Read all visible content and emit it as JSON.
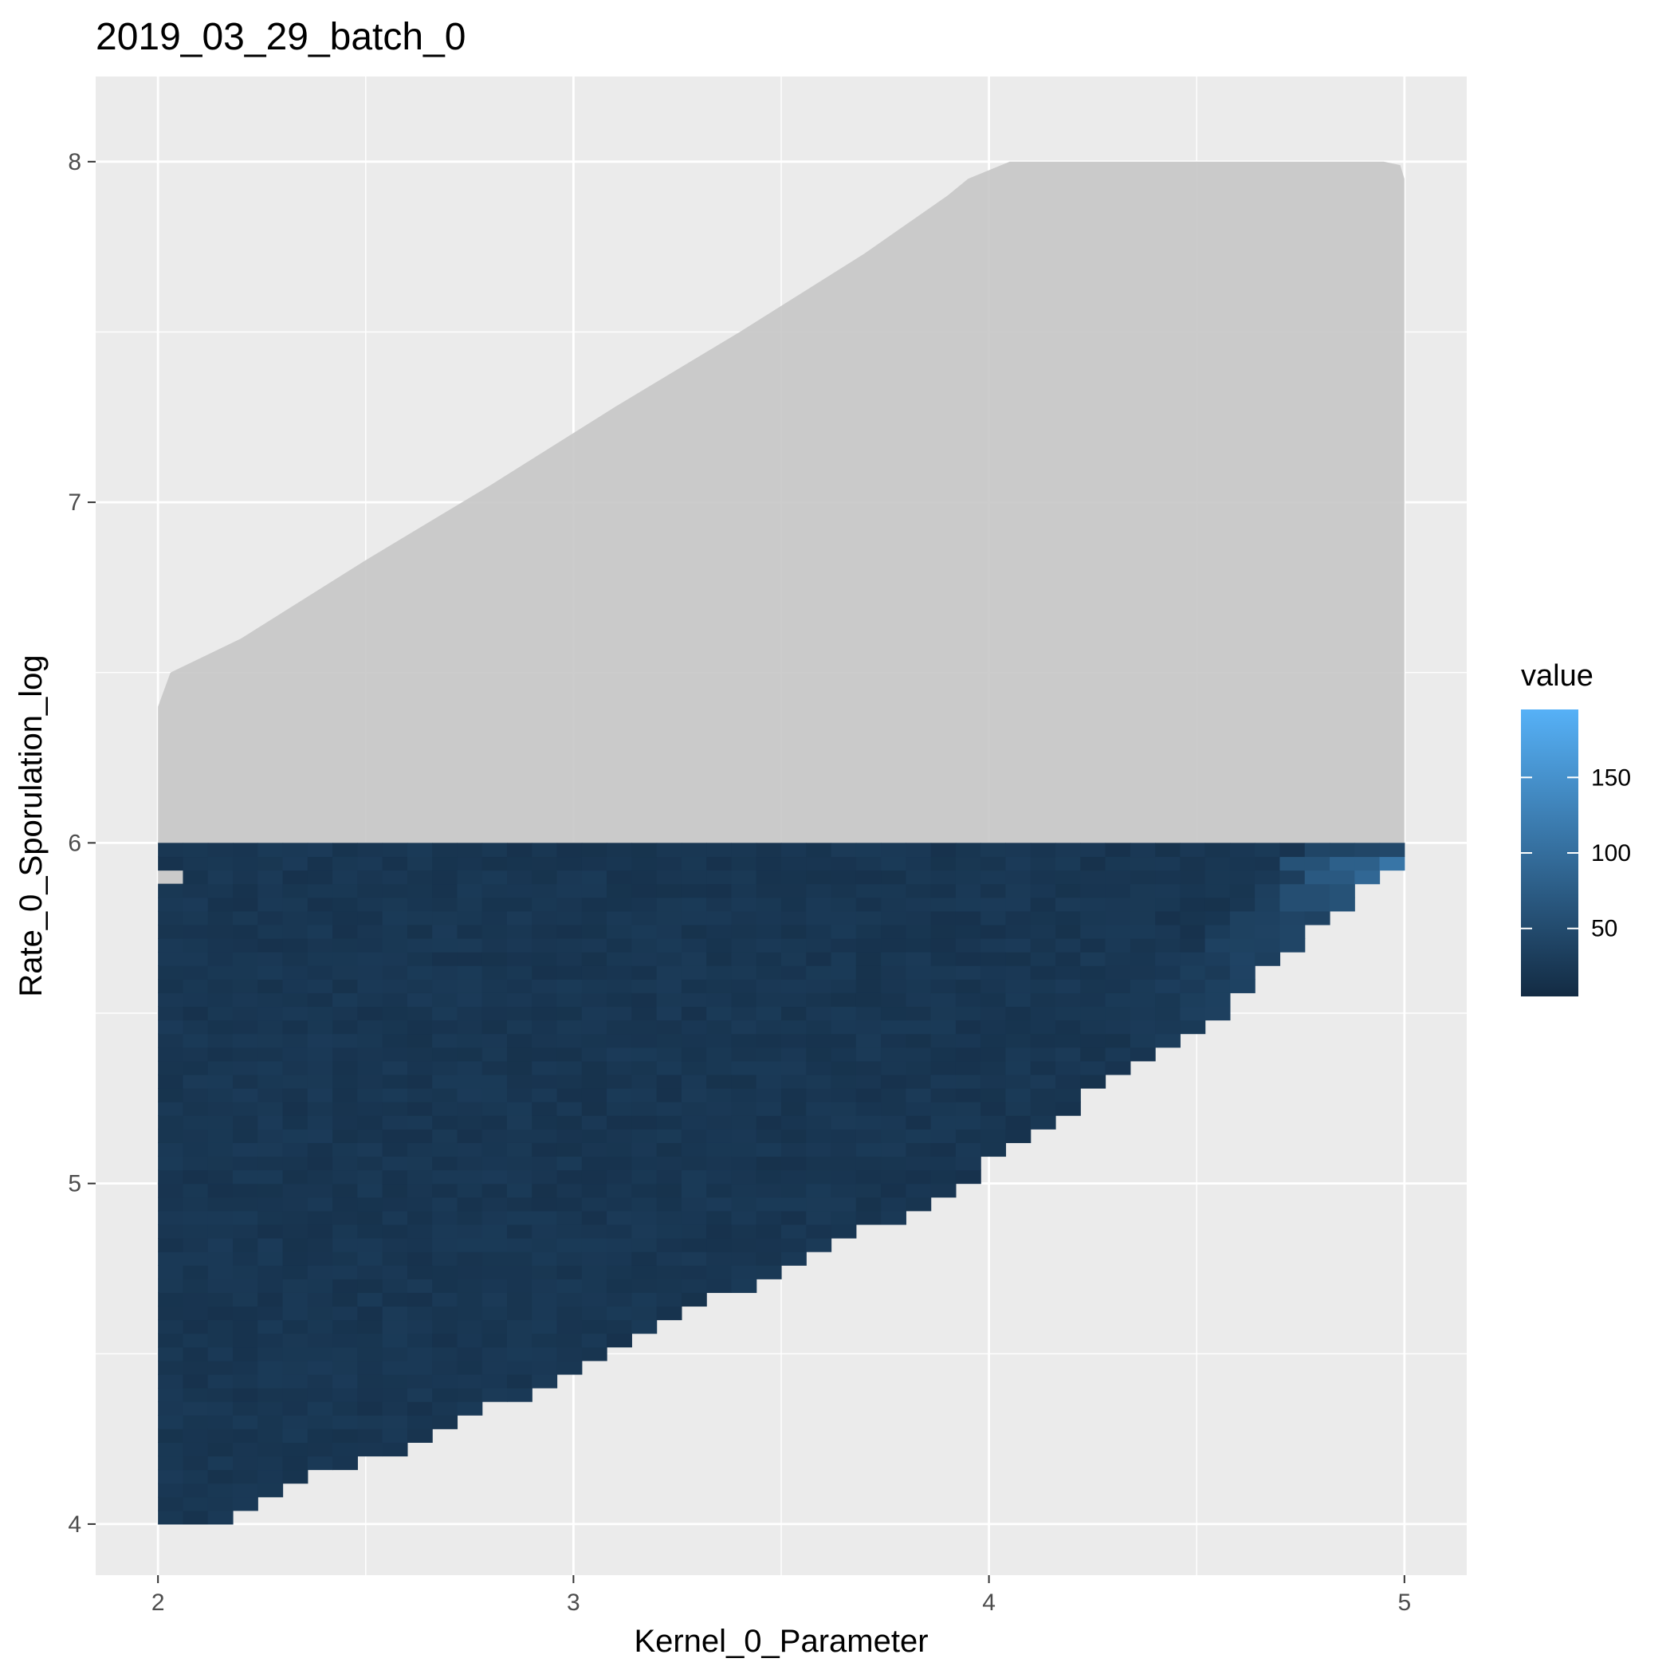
{
  "chart_data": {
    "type": "heatmap",
    "title": "2019_03_29_batch_0",
    "xlabel": "Kernel_0_Parameter",
    "ylabel": "Rate_0_Sporulation_log",
    "xlim": [
      1.85,
      5.15
    ],
    "ylim": [
      3.85,
      8.25
    ],
    "x_ticks": [
      2,
      3,
      4,
      5
    ],
    "y_ticks": [
      4,
      5,
      6,
      7,
      8
    ],
    "x_minor_ticks": [
      2.5,
      3.5,
      4.5
    ],
    "y_minor_ticks": [
      4.5,
      5.5,
      6.5,
      7.5
    ],
    "grid": true,
    "panel_color": "#ebebeb",
    "gridline_color": "#ffffff",
    "feasible_region_color": "#c6c6c6",
    "feasible_region_polygon": {
      "x": [
        2.0,
        2.0,
        2.03,
        2.2,
        2.5,
        2.8,
        3.1,
        3.4,
        3.7,
        3.9,
        3.95,
        4.05,
        4.2,
        4.5,
        4.95,
        4.99,
        5.0,
        5.0,
        4.5,
        4.0,
        3.5,
        3.0,
        2.5,
        2.2,
        2.0
      ],
      "y": [
        4.0,
        6.4,
        6.5,
        6.6,
        6.83,
        7.05,
        7.28,
        7.5,
        7.73,
        7.9,
        7.95,
        8.0,
        8.0,
        8.0,
        8.0,
        7.99,
        7.95,
        6.0,
        5.6,
        5.2,
        4.87,
        4.52,
        4.22,
        4.1,
        4.0
      ]
    },
    "grid_cells": {
      "x_min": 2.0,
      "x_max": 5.0,
      "y_min": 4.0,
      "y_max": 6.0,
      "nx": 50,
      "ny": 50,
      "lower_boundary": {
        "x": [
          2.0,
          2.17,
          2.23,
          2.36,
          2.54,
          2.72,
          2.9,
          3.02,
          3.14,
          3.26,
          3.38,
          3.5,
          3.62,
          3.68,
          3.86,
          3.98,
          4.1,
          4.22,
          4.28,
          4.4,
          4.52,
          4.58,
          4.64,
          4.7,
          4.76,
          4.82,
          4.88,
          4.94,
          5.0
        ],
        "y": [
          4.02,
          4.02,
          4.08,
          4.14,
          4.2,
          4.32,
          4.38,
          4.44,
          4.54,
          4.62,
          4.68,
          4.74,
          4.8,
          4.86,
          4.94,
          5.04,
          5.14,
          5.24,
          5.3,
          5.36,
          5.46,
          5.54,
          5.6,
          5.66,
          5.72,
          5.78,
          5.84,
          5.9,
          5.95
        ]
      },
      "missing_cell": {
        "x": 2.03,
        "y": 5.91
      },
      "base_value": 15,
      "hotspot_values": [
        {
          "x": 5.0,
          "y": 5.95,
          "value": 185
        },
        {
          "x": 4.94,
          "y": 5.95,
          "value": 110
        },
        {
          "x": 4.88,
          "y": 5.95,
          "value": 80
        },
        {
          "x": 4.88,
          "y": 5.9,
          "value": 90
        },
        {
          "x": 4.82,
          "y": 5.9,
          "value": 70
        },
        {
          "x": 4.82,
          "y": 5.84,
          "value": 60
        },
        {
          "x": 4.76,
          "y": 5.95,
          "value": 60
        },
        {
          "x": 4.76,
          "y": 5.84,
          "value": 55
        }
      ]
    },
    "legend": {
      "title": "value",
      "placement": "right",
      "ticks": [
        50,
        100,
        150
      ],
      "min": 5,
      "max": 195,
      "color_low": "#132b43",
      "color_high": "#56b1f7"
    }
  }
}
